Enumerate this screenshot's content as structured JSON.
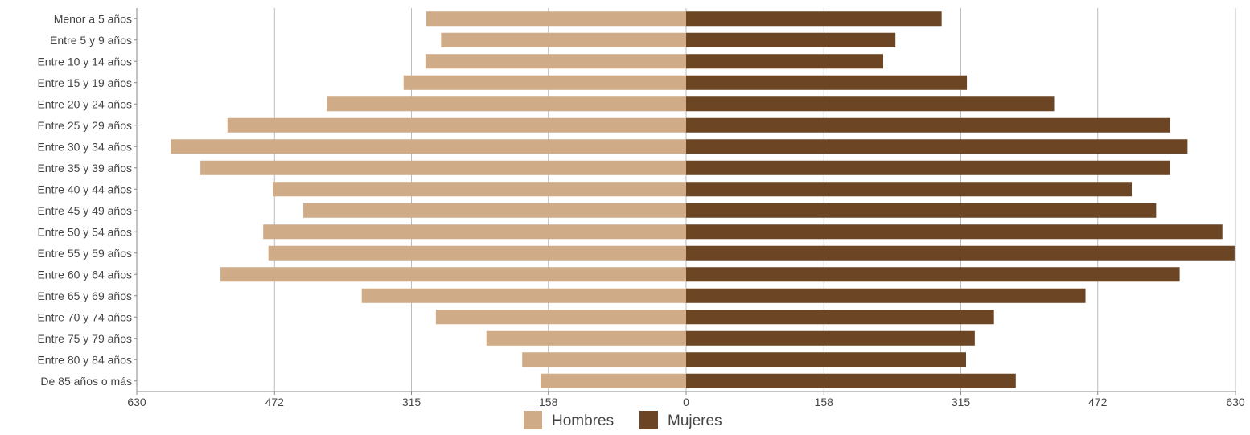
{
  "chart_data": {
    "type": "bar",
    "orientation": "horizontal",
    "layout": "population-pyramid",
    "categories": [
      "Menor a 5 años",
      "Entre 5 y 9 años",
      "Entre 10 y 14 años",
      "Entre 15 y 19 años",
      "Entre 20 y 24 años",
      "Entre 25 y 29 años",
      "Entre 30 y 34 años",
      "Entre 35 y 39 años",
      "Entre 40 y 44 años",
      "Entre 45 y 49 años",
      "Entre 50 y 54 años",
      "Entre 55 y 59 años",
      "Entre 60 y 64 años",
      "Entre 65 y 69 años",
      "Entre 70 y 74 años",
      "Entre 75 y 79 años",
      "Entre 80 y 84 años",
      "De 85 años o más"
    ],
    "series": [
      {
        "name": "Hombres",
        "side": "left",
        "color": "#cfab87",
        "values": [
          298,
          281,
          299,
          324,
          412,
          526,
          591,
          557,
          474,
          439,
          485,
          479,
          534,
          372,
          287,
          229,
          188,
          167
        ]
      },
      {
        "name": "Mujeres",
        "side": "right",
        "color": "#6b4524",
        "values": [
          293,
          240,
          226,
          322,
          422,
          555,
          575,
          555,
          511,
          539,
          615,
          629,
          566,
          458,
          353,
          331,
          321,
          378
        ]
      }
    ],
    "xlim": [
      -630,
      630
    ],
    "x_ticks": [
      {
        "value": -630,
        "label": "630"
      },
      {
        "value": -472,
        "label": "472"
      },
      {
        "value": -315,
        "label": "315"
      },
      {
        "value": -158,
        "label": "158"
      },
      {
        "value": 0,
        "label": "0"
      },
      {
        "value": 158,
        "label": "158"
      },
      {
        "value": 315,
        "label": "315"
      },
      {
        "value": 472,
        "label": "472"
      },
      {
        "value": 630,
        "label": "630"
      }
    ],
    "title": "",
    "xlabel": "",
    "ylabel": "",
    "grid": true,
    "legend_position": "bottom"
  }
}
